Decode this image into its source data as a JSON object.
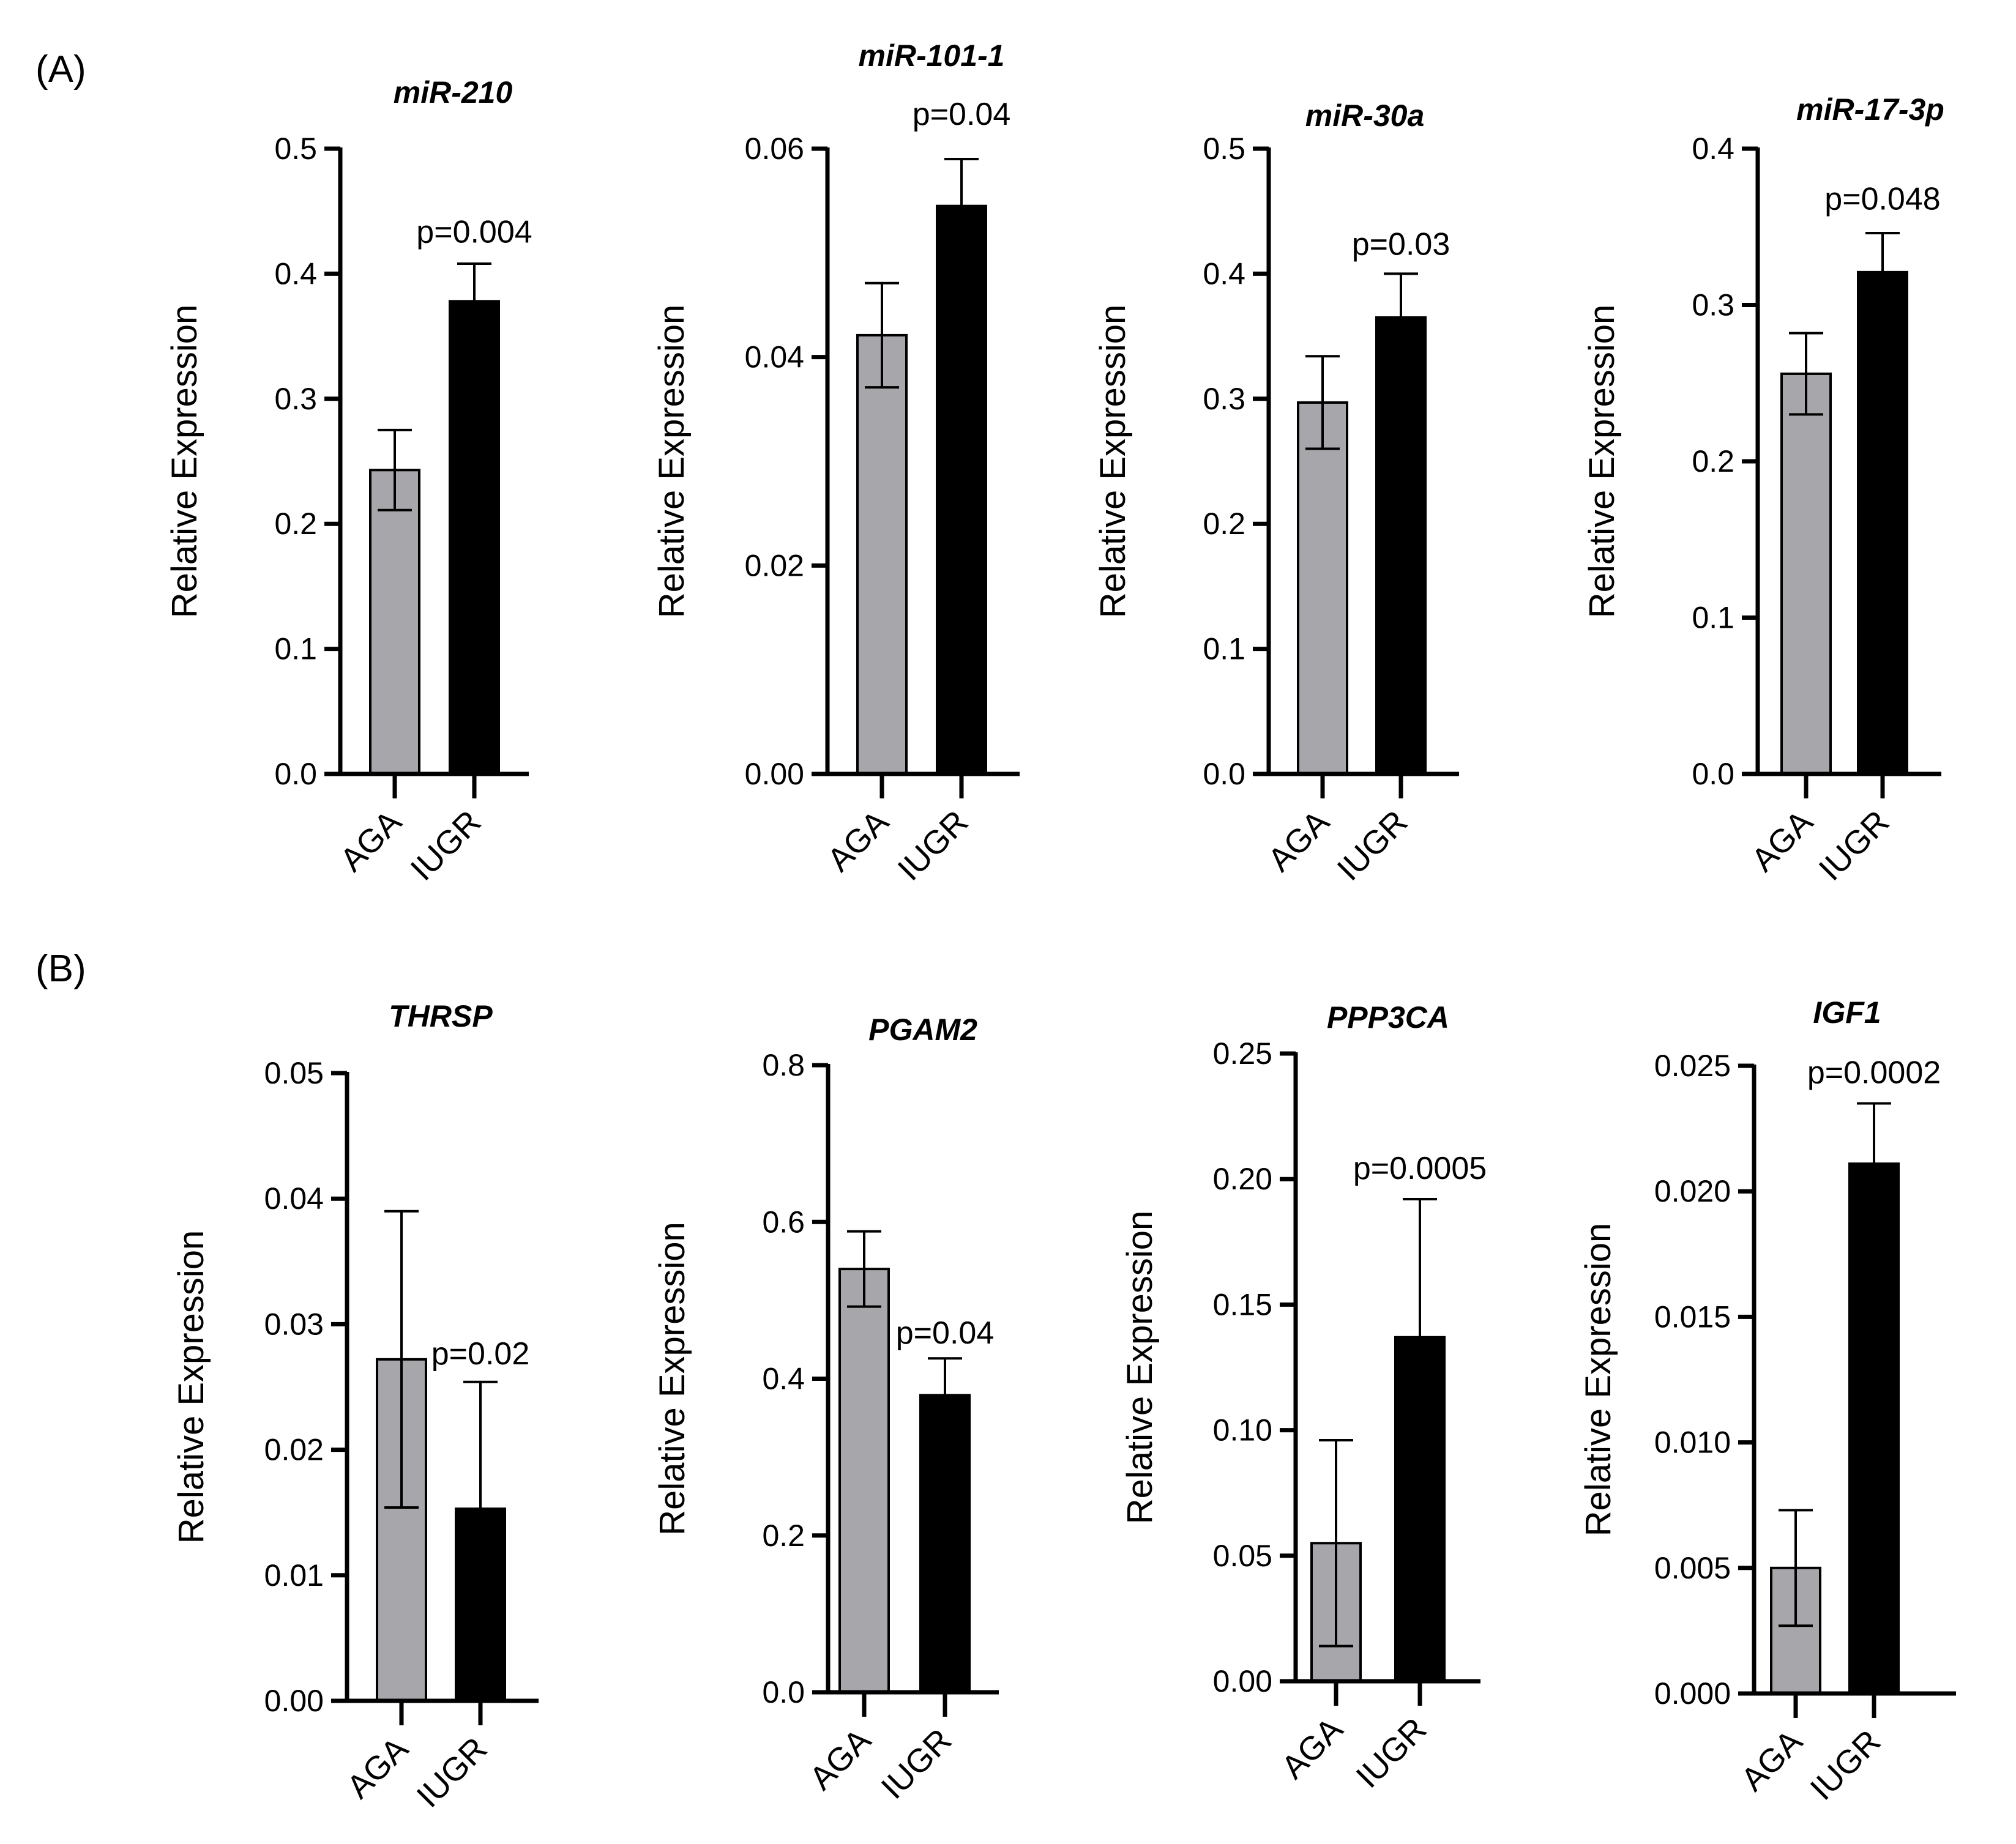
{
  "panel_labels": {
    "a": "(A)",
    "b": "(B)"
  },
  "colors": {
    "AGA": "#a7a6ab",
    "IUGR": "#000000",
    "axis": "#000000"
  },
  "chart_data": [
    {
      "type": "bar",
      "title": "miR-210",
      "ylabel": "Relative Expression",
      "categories": [
        "AGA",
        "IUGR"
      ],
      "values": [
        0.243,
        0.378
      ],
      "errors": [
        0.032,
        0.03
      ],
      "ylim": [
        0,
        0.5
      ],
      "yticks": [
        0,
        0.1,
        0.2,
        0.3,
        0.4,
        0.5
      ],
      "ytick_labels": [
        "0.0",
        "0.1",
        "0.2",
        "0.3",
        "0.4",
        "0.5"
      ],
      "annotation": "p=0.004",
      "annotation_value": 0.425
    },
    {
      "type": "bar",
      "title": "miR-101-1",
      "ylabel": "Relative Expression",
      "categories": [
        "AGA",
        "IUGR"
      ],
      "values": [
        0.0421,
        0.0545
      ],
      "errors": [
        0.005,
        0.0045
      ],
      "ylim": [
        0,
        0.06
      ],
      "yticks": [
        0,
        0.02,
        0.04,
        0.06
      ],
      "ytick_labels": [
        "0.00",
        "0.02",
        "0.04",
        "0.06"
      ],
      "annotation": "p=0.04",
      "annotation_value": 0.0623
    },
    {
      "type": "bar",
      "title": "miR-30a",
      "ylabel": "Relative Expression",
      "categories": [
        "AGA",
        "IUGR"
      ],
      "values": [
        0.297,
        0.365
      ],
      "errors": [
        0.037,
        0.035
      ],
      "ylim": [
        0,
        0.5
      ],
      "yticks": [
        0,
        0.1,
        0.2,
        0.3,
        0.4,
        0.5
      ],
      "ytick_labels": [
        "0.0",
        "0.1",
        "0.2",
        "0.3",
        "0.4",
        "0.5"
      ],
      "annotation": "p=0.03",
      "annotation_value": 0.415
    },
    {
      "type": "bar",
      "title": "miR-17-3p",
      "ylabel": "Relative Expression",
      "categories": [
        "AGA",
        "IUGR"
      ],
      "values": [
        0.256,
        0.321
      ],
      "errors": [
        0.026,
        0.025
      ],
      "ylim": [
        0,
        0.4
      ],
      "yticks": [
        0,
        0.1,
        0.2,
        0.3,
        0.4
      ],
      "ytick_labels": [
        "0.0",
        "0.1",
        "0.2",
        "0.3",
        "0.4"
      ],
      "annotation": "p=0.048",
      "annotation_value": 0.361
    },
    {
      "type": "bar",
      "title": "THRSP",
      "ylabel": "Relative Expression",
      "categories": [
        "AGA",
        "IUGR"
      ],
      "values": [
        0.0272,
        0.0153
      ],
      "errors": [
        0.0118,
        0.0101
      ],
      "ylim": [
        0,
        0.05
      ],
      "yticks": [
        0,
        0.01,
        0.02,
        0.03,
        0.04,
        0.05
      ],
      "ytick_labels": [
        "0.00",
        "0.01",
        "0.02",
        "0.03",
        "0.04",
        "0.05"
      ],
      "annotation": "p=0.02",
      "annotation_value": 0.0268
    },
    {
      "type": "bar",
      "title": "PGAM2",
      "ylabel": "Relative Expression",
      "categories": [
        "AGA",
        "IUGR"
      ],
      "values": [
        0.54,
        0.379
      ],
      "errors": [
        0.048,
        0.047
      ],
      "ylim": [
        0,
        0.8
      ],
      "yticks": [
        0,
        0.2,
        0.4,
        0.6,
        0.8
      ],
      "ytick_labels": [
        "0.0",
        "0.2",
        "0.4",
        "0.6",
        "0.8"
      ],
      "annotation": "p=0.04",
      "annotation_value": 0.445
    },
    {
      "type": "bar",
      "title": "PPP3CA",
      "ylabel": "Relative Expression",
      "categories": [
        "AGA",
        "IUGR"
      ],
      "values": [
        0.055,
        0.137
      ],
      "errors": [
        0.041,
        0.055
      ],
      "ylim": [
        0,
        0.25
      ],
      "yticks": [
        0,
        0.05,
        0.1,
        0.15,
        0.2,
        0.25
      ],
      "ytick_labels": [
        "0.00",
        "0.05",
        "0.10",
        "0.15",
        "0.20",
        "0.25"
      ],
      "annotation": "p=0.0005",
      "annotation_value": 0.2
    },
    {
      "type": "bar",
      "title": "IGF1",
      "ylabel": "Relative Expression",
      "categories": [
        "AGA",
        "IUGR"
      ],
      "values": [
        0.005,
        0.0211
      ],
      "errors": [
        0.0023,
        0.0024
      ],
      "ylim": [
        0,
        0.025
      ],
      "yticks": [
        0,
        0.005,
        0.01,
        0.015,
        0.02,
        0.025
      ],
      "ytick_labels": [
        "0.000",
        "0.005",
        "0.010",
        "0.015",
        "0.020",
        "0.025"
      ],
      "annotation": "p=0.0002",
      "annotation_value": 0.0243
    }
  ]
}
